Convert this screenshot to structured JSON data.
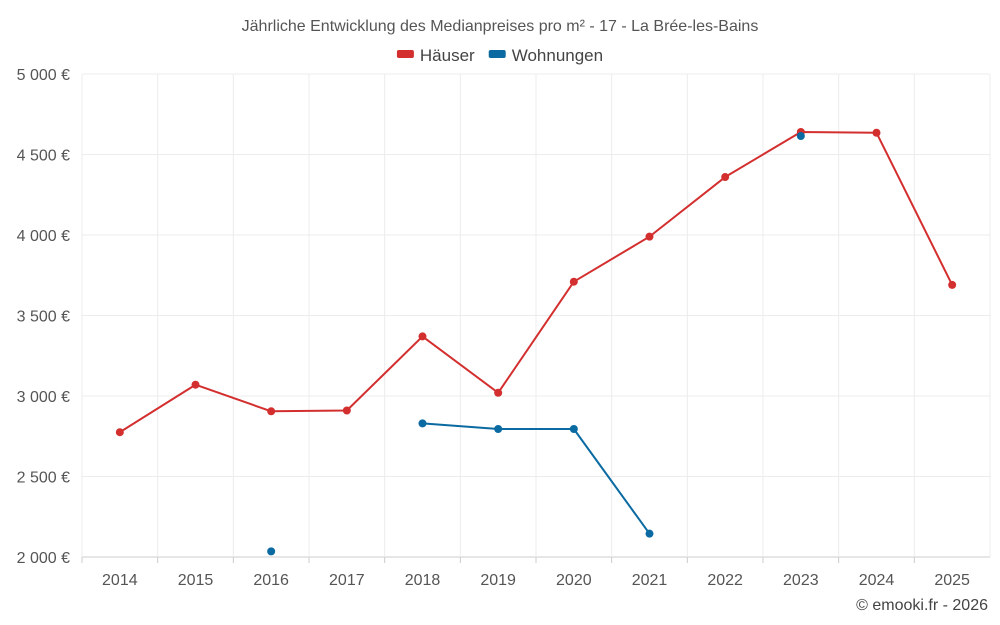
{
  "chart_data": {
    "type": "line",
    "title": "Jährliche Entwicklung des Medianpreises pro m² - 17 - La Brée-les-Bains",
    "categories": [
      "2014",
      "2015",
      "2016",
      "2017",
      "2018",
      "2019",
      "2020",
      "2021",
      "2022",
      "2023",
      "2024",
      "2025"
    ],
    "y_ticks": [
      2000,
      2500,
      3000,
      3500,
      4000,
      4500,
      5000
    ],
    "y_tick_labels": [
      "2 000 €",
      "2 500 €",
      "3 000 €",
      "3 500 €",
      "4 000 €",
      "4 500 €",
      "5 000 €"
    ],
    "ylim": [
      2000,
      5000
    ],
    "xlabel": "",
    "ylabel": "",
    "grid": true,
    "legend_position": "top-center",
    "series": [
      {
        "name": "Häuser",
        "color": "#d32f2f",
        "values": [
          2775,
          3070,
          2905,
          2910,
          3370,
          3020,
          3710,
          3990,
          4360,
          4640,
          4635,
          3690
        ]
      },
      {
        "name": "Wohnungen",
        "color": "#0a6aa1",
        "values": [
          null,
          null,
          2035,
          null,
          2830,
          2795,
          2795,
          2145,
          null,
          4615,
          null,
          null
        ]
      }
    ]
  },
  "credit": "© emooki.fr - 2026"
}
